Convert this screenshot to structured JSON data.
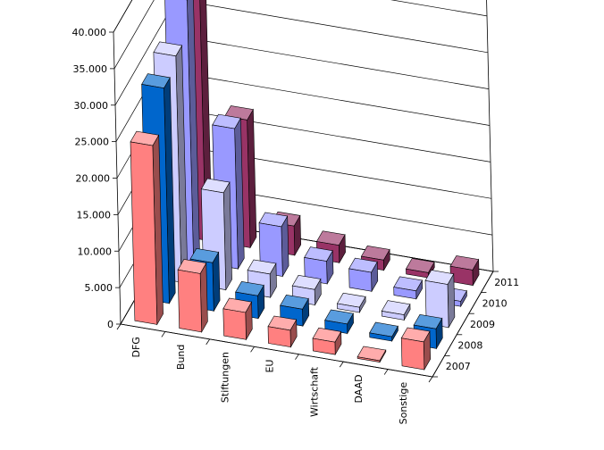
{
  "chart_data": {
    "type": "bar",
    "variant": "3d-clustered-depth",
    "categories": [
      "DFG",
      "Bund",
      "Stiftungen",
      "EU",
      "Wirtschaft",
      "DAAD",
      "Sonstige"
    ],
    "series": [
      {
        "name": "2007",
        "color": "#ff8080",
        "values": [
          24500,
          8000,
          3700,
          2300,
          1700,
          200,
          3800
        ]
      },
      {
        "name": "2008",
        "color": "#0066cc",
        "values": [
          29500,
          6600,
          3100,
          2300,
          1300,
          600,
          2700
        ]
      },
      {
        "name": "2009",
        "color": "#ccccff",
        "values": [
          31000,
          13300,
          3200,
          2100,
          700,
          700,
          5900
        ]
      },
      {
        "name": "2010",
        "color": "#9999ff",
        "values": [
          35800,
          19200,
          6800,
          3100,
          2600,
          1100,
          700
        ]
      },
      {
        "name": "2011",
        "color": "#993366",
        "values": [
          37700,
          17500,
          4000,
          2400,
          1400,
          700,
          2100
        ]
      }
    ],
    "y_ticks": [
      "0",
      "5.000",
      "10.000",
      "15.000",
      "20.000",
      "25.000",
      "30.000",
      "35.000",
      "40.000"
    ],
    "ylim": [
      0,
      40000
    ],
    "grid": true,
    "title": "",
    "xlabel": "",
    "ylabel": ""
  }
}
